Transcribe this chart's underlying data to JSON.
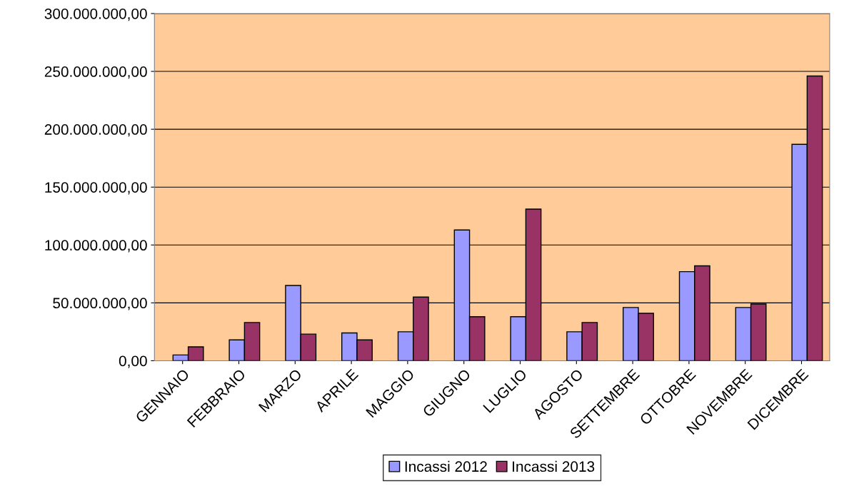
{
  "chart_data": {
    "type": "bar",
    "categories": [
      "GENNAIO",
      "FEBBRAIO",
      "MARZO",
      "APRILE",
      "MAGGIO",
      "GIUGNO",
      "LUGLIO",
      "AGOSTO",
      "SETTEMBRE",
      "OTTOBRE",
      "NOVEMBRE",
      "DICEMBRE"
    ],
    "series": [
      {
        "name": "Incassi 2012",
        "color": "#9999ff",
        "values": [
          5000000,
          18000000,
          65000000,
          24000000,
          25000000,
          113000000,
          38000000,
          25000000,
          46000000,
          77000000,
          46000000,
          187000000
        ]
      },
      {
        "name": "Incassi 2013",
        "color": "#993366",
        "values": [
          12000000,
          33000000,
          23000000,
          18000000,
          55000000,
          38000000,
          131000000,
          33000000,
          41000000,
          82000000,
          49000000,
          246000000
        ]
      }
    ],
    "ylim": [
      0,
      300000000
    ],
    "yticks": [
      {
        "value": 0,
        "label": "0,00"
      },
      {
        "value": 50000000,
        "label": "50.000.000,00"
      },
      {
        "value": 100000000,
        "label": "100.000.000,00"
      },
      {
        "value": 150000000,
        "label": "150.000.000,00"
      },
      {
        "value": 200000000,
        "label": "200.000.000,00"
      },
      {
        "value": 250000000,
        "label": "250.000.000,00"
      },
      {
        "value": 300000000,
        "label": "300.000.000,00"
      }
    ],
    "grid": "y",
    "legend": "bottom"
  }
}
